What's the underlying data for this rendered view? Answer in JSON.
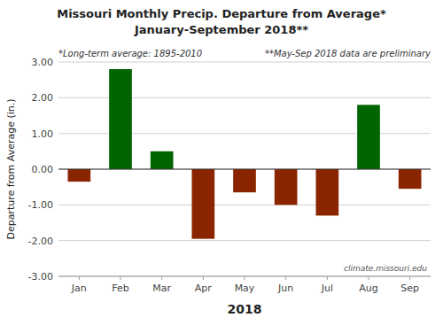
{
  "chart_data": {
    "type": "bar",
    "title": "Missouri Monthly Precip. Departure from Average*",
    "subtitle": "January-September 2018**",
    "annotations": [
      "*Long-term average: 1895-2010",
      "**May-Sep 2018 data are preliminary",
      "climate.missouri.edu"
    ],
    "xlabel": "2018",
    "ylabel": "Departure from Average (in.)",
    "categories": [
      "Jan",
      "Feb",
      "Mar",
      "Apr",
      "May",
      "Jun",
      "Jul",
      "Aug",
      "Sep"
    ],
    "values": [
      -0.35,
      2.8,
      0.5,
      -1.95,
      -0.65,
      -1.0,
      -1.3,
      1.8,
      -0.55
    ],
    "colors": [
      "#8B2500",
      "#006400",
      "#006400",
      "#8B2500",
      "#8B2500",
      "#8B2500",
      "#8B2500",
      "#006400",
      "#8B2500"
    ],
    "ylim": [
      -3.0,
      3.0
    ],
    "yticks": [
      {
        "value": -3.0,
        "label": "-3.00"
      },
      {
        "value": -2.0,
        "label": "-2.00"
      },
      {
        "value": -1.0,
        "label": "-1.00"
      },
      {
        "value": 0.0,
        "label": "0.00"
      },
      {
        "value": 1.0,
        "label": "1.00"
      },
      {
        "value": 2.0,
        "label": "2.00"
      },
      {
        "value": 3.0,
        "label": "3.00"
      }
    ],
    "grid": true
  }
}
